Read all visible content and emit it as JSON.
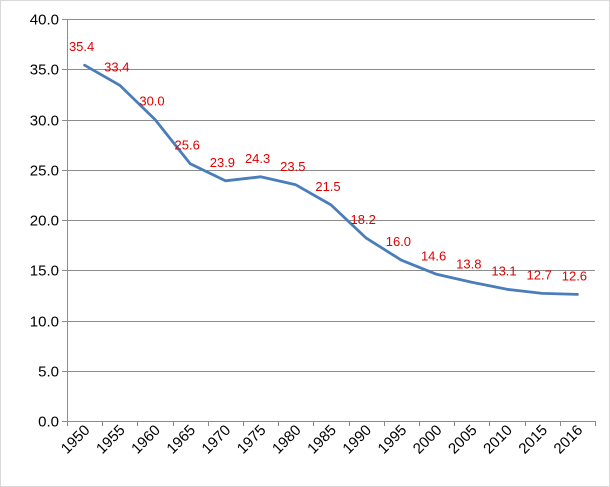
{
  "chart_data": {
    "type": "line",
    "title": "",
    "xlabel": "",
    "ylabel": "",
    "categories": [
      "1950",
      "1955",
      "1960",
      "1965",
      "1970",
      "1975",
      "1980",
      "1985",
      "1990",
      "1995",
      "2000",
      "2005",
      "2010",
      "2015",
      "2016"
    ],
    "series": [
      {
        "values": [
          35.4,
          33.4,
          30.0,
          25.6,
          23.9,
          24.3,
          23.5,
          21.5,
          18.2,
          16.0,
          14.6,
          13.8,
          13.1,
          12.7,
          12.6
        ],
        "labels": [
          "35.4",
          "33.4",
          "30.0",
          "25.6",
          "23.9",
          "24.3",
          "23.5",
          "21.5",
          "18.2",
          "16.0",
          "14.6",
          "13.8",
          "13.1",
          "12.7",
          "12.6"
        ],
        "color": "#4a7ebb"
      }
    ],
    "ylim": [
      0,
      40
    ],
    "yticks": [
      "0.0",
      "5.0",
      "10.0",
      "15.0",
      "20.0",
      "25.0",
      "30.0",
      "35.0",
      "40.0"
    ],
    "grid": true,
    "legend": "none",
    "label_color": "#e00000",
    "grid_color": "#8c8c8c"
  }
}
